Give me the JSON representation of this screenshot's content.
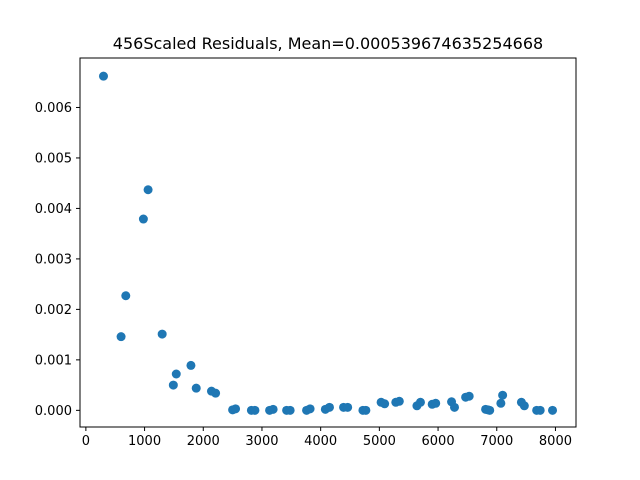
{
  "chart_data": {
    "type": "scatter",
    "title": "456Scaled Residuals, Mean=0.000539674635254668",
    "xlabel": "",
    "ylabel": "",
    "xlim": [
      -100,
      8350
    ],
    "ylim": [
      -0.00033,
      0.00698
    ],
    "xticks": [
      0,
      1000,
      2000,
      3000,
      4000,
      5000,
      6000,
      7000,
      8000
    ],
    "xtick_labels": [
      "0",
      "1000",
      "2000",
      "3000",
      "4000",
      "5000",
      "6000",
      "7000",
      "8000"
    ],
    "yticks": [
      0.0,
      0.001,
      0.002,
      0.003,
      0.004,
      0.005,
      0.006
    ],
    "ytick_labels": [
      "0.000",
      "0.001",
      "0.002",
      "0.003",
      "0.004",
      "0.005",
      "0.006"
    ],
    "grid": false,
    "marker_color": "#1f77b4",
    "series": [
      {
        "x": [
          300,
          600,
          680,
          980,
          1060,
          1300,
          1490,
          1540,
          1790,
          1880,
          2140,
          2210,
          2500,
          2550,
          2820,
          2880,
          3130,
          3190,
          3420,
          3480,
          3760,
          3820,
          4080,
          4150,
          4390,
          4460,
          4720,
          4770,
          5030,
          5090,
          5280,
          5340,
          5640,
          5700,
          5900,
          5960,
          6230,
          6280,
          6470,
          6530,
          6810,
          6850,
          6880,
          7070,
          7100,
          7420,
          7470,
          7680,
          7740,
          7950
        ],
        "y": [
          0.00662,
          0.00146,
          0.00227,
          0.00379,
          0.00437,
          0.00151,
          0.0005,
          0.00072,
          0.00089,
          0.00044,
          0.00038,
          0.00034,
          1e-05,
          3e-05,
          0.0,
          0.0,
          0.0,
          2e-05,
          0.0,
          0.0,
          0.0,
          3e-05,
          2e-05,
          6e-05,
          6e-05,
          6e-05,
          0.0,
          0.0,
          0.00016,
          0.00013,
          0.00016,
          0.00018,
          9e-05,
          0.00016,
          0.00012,
          0.00014,
          0.00017,
          6e-05,
          0.00026,
          0.00028,
          2e-05,
          1e-05,
          0.0,
          0.00014,
          0.0003,
          0.00016,
          9e-05,
          0.0,
          0.0,
          0.0
        ]
      }
    ]
  }
}
